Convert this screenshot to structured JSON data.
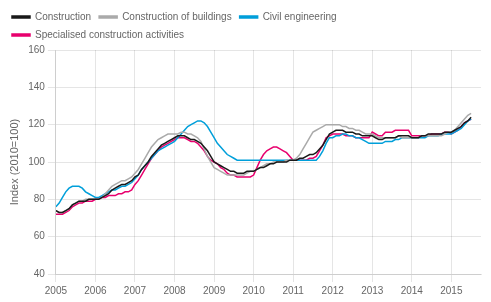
{
  "chart_data": {
    "type": "line",
    "ylabel": "Index (2010=100)",
    "xlim": [
      2005.0,
      2015.75
    ],
    "xticks": [
      2005,
      2006,
      2007,
      2008,
      2009,
      2010,
      2011,
      2012,
      2013,
      2014,
      2015
    ],
    "ylim": [
      40,
      160
    ],
    "yticks": [
      40,
      60,
      80,
      100,
      120,
      140,
      160
    ],
    "grid": true,
    "legend": "upper left",
    "x": [
      2005.0,
      2005.083,
      2005.167,
      2005.25,
      2005.333,
      2005.417,
      2005.5,
      2005.583,
      2005.667,
      2005.75,
      2005.833,
      2005.917,
      2006.0,
      2006.083,
      2006.167,
      2006.25,
      2006.333,
      2006.417,
      2006.5,
      2006.583,
      2006.667,
      2006.75,
      2006.833,
      2006.917,
      2007.0,
      2007.083,
      2007.167,
      2007.25,
      2007.333,
      2007.417,
      2007.5,
      2007.583,
      2007.667,
      2007.75,
      2007.833,
      2007.917,
      2008.0,
      2008.083,
      2008.167,
      2008.25,
      2008.333,
      2008.417,
      2008.5,
      2008.583,
      2008.667,
      2008.75,
      2008.833,
      2008.917,
      2009.0,
      2009.083,
      2009.167,
      2009.25,
      2009.333,
      2009.417,
      2009.5,
      2009.583,
      2009.667,
      2009.75,
      2009.833,
      2009.917,
      2010.0,
      2010.083,
      2010.167,
      2010.25,
      2010.333,
      2010.417,
      2010.5,
      2010.583,
      2010.667,
      2010.75,
      2010.833,
      2010.917,
      2011.0,
      2011.083,
      2011.167,
      2011.25,
      2011.333,
      2011.417,
      2011.5,
      2011.583,
      2011.667,
      2011.75,
      2011.833,
      2011.917,
      2012.0,
      2012.083,
      2012.167,
      2012.25,
      2012.333,
      2012.417,
      2012.5,
      2012.583,
      2012.667,
      2012.75,
      2012.833,
      2012.917,
      2013.0,
      2013.083,
      2013.167,
      2013.25,
      2013.333,
      2013.417,
      2013.5,
      2013.583,
      2013.667,
      2013.75,
      2013.833,
      2013.917,
      2014.0,
      2014.083,
      2014.167,
      2014.25,
      2014.333,
      2014.417,
      2014.5,
      2014.583,
      2014.667,
      2014.75,
      2014.833,
      2014.917,
      2015.0,
      2015.083,
      2015.167,
      2015.25,
      2015.333,
      2015.417,
      2015.5
    ],
    "series": [
      {
        "name": "Construction",
        "color": "#1a1a1a",
        "values": [
          74,
          73,
          73,
          74,
          75,
          77,
          78,
          79,
          79,
          79,
          80,
          80,
          80,
          80,
          81,
          82,
          83,
          85,
          86,
          87,
          88,
          88,
          89,
          90,
          92,
          93,
          96,
          98,
          100,
          103,
          105,
          107,
          109,
          110,
          111,
          112,
          113,
          114,
          114,
          114,
          113,
          112,
          112,
          111,
          110,
          108,
          106,
          103,
          100,
          99,
          98,
          97,
          96,
          95,
          95,
          94,
          94,
          94,
          95,
          95,
          95,
          96,
          97,
          97,
          98,
          99,
          99,
          100,
          100,
          100,
          100,
          101,
          101,
          101,
          102,
          102,
          103,
          104,
          104,
          105,
          107,
          109,
          112,
          115,
          116,
          117,
          117,
          117,
          116,
          116,
          116,
          115,
          115,
          114,
          114,
          114,
          114,
          113,
          112,
          112,
          113,
          113,
          113,
          113,
          114,
          114,
          114,
          114,
          113,
          113,
          113,
          114,
          114,
          115,
          115,
          115,
          115,
          115,
          116,
          116,
          116,
          117,
          118,
          119,
          121,
          122,
          124
        ]
      },
      {
        "name": "Construction of buildings",
        "color": "#aaaaaa",
        "values": [
          74,
          73,
          73,
          74,
          75,
          77,
          78,
          79,
          79,
          80,
          80,
          80,
          80,
          80,
          81,
          83,
          85,
          87,
          88,
          89,
          90,
          90,
          91,
          92,
          94,
          96,
          99,
          102,
          105,
          108,
          110,
          112,
          113,
          114,
          115,
          115,
          115,
          115,
          116,
          116,
          115,
          115,
          114,
          113,
          111,
          107,
          103,
          100,
          97,
          96,
          95,
          94,
          93,
          93,
          93,
          93,
          93,
          93,
          94,
          95,
          95,
          96,
          97,
          98,
          99,
          99,
          100,
          100,
          100,
          100,
          101,
          101,
          101,
          102,
          104,
          107,
          110,
          113,
          116,
          117,
          118,
          119,
          120,
          120,
          120,
          120,
          120,
          119,
          119,
          118,
          118,
          117,
          117,
          116,
          115,
          115,
          115,
          114,
          113,
          113,
          113,
          113,
          113,
          113,
          114,
          113,
          113,
          113,
          113,
          113,
          113,
          114,
          114,
          114,
          114,
          114,
          114,
          114,
          115,
          116,
          116,
          117,
          119,
          121,
          123,
          125,
          126
        ]
      },
      {
        "name": "Civil engineering",
        "color": "#009fda",
        "values": [
          76,
          78,
          81,
          84,
          86,
          87,
          87,
          87,
          86,
          84,
          83,
          82,
          81,
          81,
          82,
          83,
          84,
          85,
          85,
          86,
          87,
          87,
          88,
          89,
          91,
          93,
          96,
          98,
          100,
          102,
          104,
          106,
          107,
          108,
          109,
          110,
          111,
          113,
          115,
          117,
          119,
          120,
          121,
          122,
          122,
          121,
          119,
          116,
          113,
          110,
          108,
          106,
          104,
          103,
          102,
          101,
          101,
          101,
          101,
          101,
          101,
          101,
          101,
          101,
          101,
          101,
          101,
          101,
          101,
          101,
          101,
          101,
          101,
          101,
          101,
          101,
          101,
          101,
          101,
          101,
          103,
          106,
          110,
          113,
          113,
          114,
          114,
          115,
          115,
          114,
          114,
          113,
          113,
          112,
          111,
          110,
          110,
          110,
          110,
          110,
          111,
          111,
          111,
          112,
          112,
          113,
          113,
          113,
          113,
          113,
          113,
          113,
          113,
          114,
          114,
          114,
          114,
          115,
          115,
          115,
          115,
          116,
          117,
          118,
          120,
          122,
          123
        ]
      },
      {
        "name": "Specialised construction activities",
        "color": "#e8006e",
        "values": [
          72,
          72,
          72,
          73,
          74,
          76,
          77,
          78,
          78,
          79,
          79,
          79,
          80,
          80,
          81,
          81,
          82,
          82,
          82,
          83,
          83,
          84,
          84,
          85,
          88,
          90,
          93,
          96,
          99,
          102,
          104,
          106,
          108,
          109,
          110,
          111,
          112,
          113,
          113,
          113,
          112,
          111,
          111,
          110,
          108,
          106,
          103,
          101,
          100,
          99,
          97,
          96,
          94,
          93,
          93,
          92,
          92,
          92,
          92,
          92,
          93,
          97,
          101,
          104,
          106,
          107,
          108,
          108,
          107,
          106,
          105,
          103,
          101,
          101,
          101,
          101,
          101,
          102,
          102,
          103,
          106,
          109,
          113,
          114,
          115,
          115,
          115,
          115,
          114,
          114,
          114,
          113,
          113,
          113,
          113,
          113,
          116,
          115,
          114,
          114,
          116,
          116,
          116,
          117,
          117,
          117,
          117,
          117,
          114,
          114,
          114,
          114,
          114,
          114,
          115,
          115,
          115,
          115,
          116,
          116,
          115,
          116,
          117,
          119,
          121,
          122,
          123
        ]
      }
    ]
  }
}
